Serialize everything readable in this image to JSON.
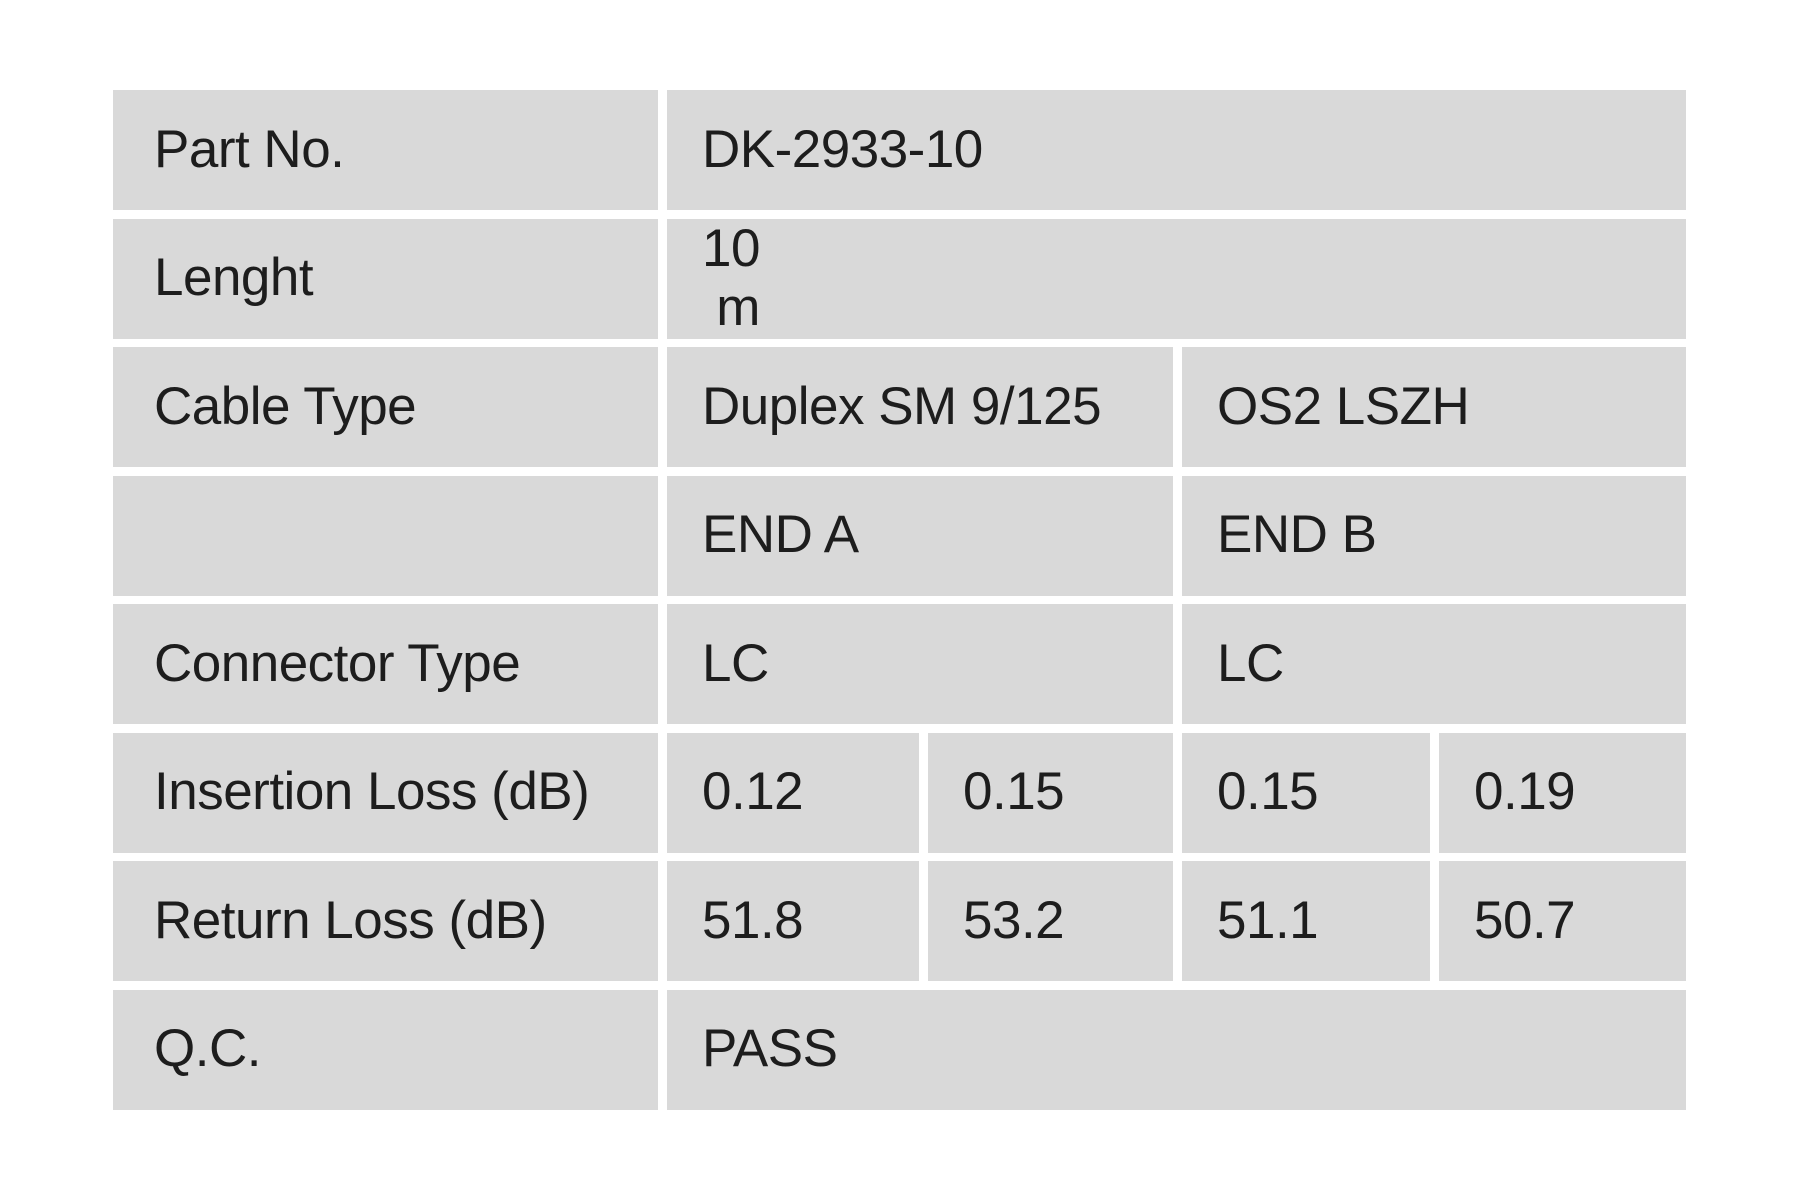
{
  "page": {
    "background_color": "#ffffff",
    "cell_background_color": "#d9d9d9",
    "text_color": "#1d1d1d"
  },
  "table": {
    "rows": [
      {
        "label": "Part No.",
        "values": {
          "full": "DK-2933-10"
        }
      },
      {
        "label": "Lenght",
        "values": {
          "full": "10\n m"
        }
      },
      {
        "label": "Cable Type",
        "values": {
          "left": "Duplex SM 9/125",
          "right": "OS2 LSZH"
        }
      },
      {
        "label": "",
        "values": {
          "left": "END A",
          "right": "END B"
        }
      },
      {
        "label": "Connector Type",
        "values": {
          "left": "LC",
          "right": "LC"
        }
      },
      {
        "label": "Insertion Loss (dB)",
        "values": {
          "a": "0.12",
          "b": "0.15",
          "c": "0.15",
          "d": "0.19"
        }
      },
      {
        "label": "Return Loss (dB)",
        "values": {
          "a": "51.8",
          "b": "53.2",
          "c": "51.1",
          "d": "50.7"
        }
      },
      {
        "label": "Q.C.",
        "values": {
          "full": "PASS"
        }
      }
    ]
  }
}
